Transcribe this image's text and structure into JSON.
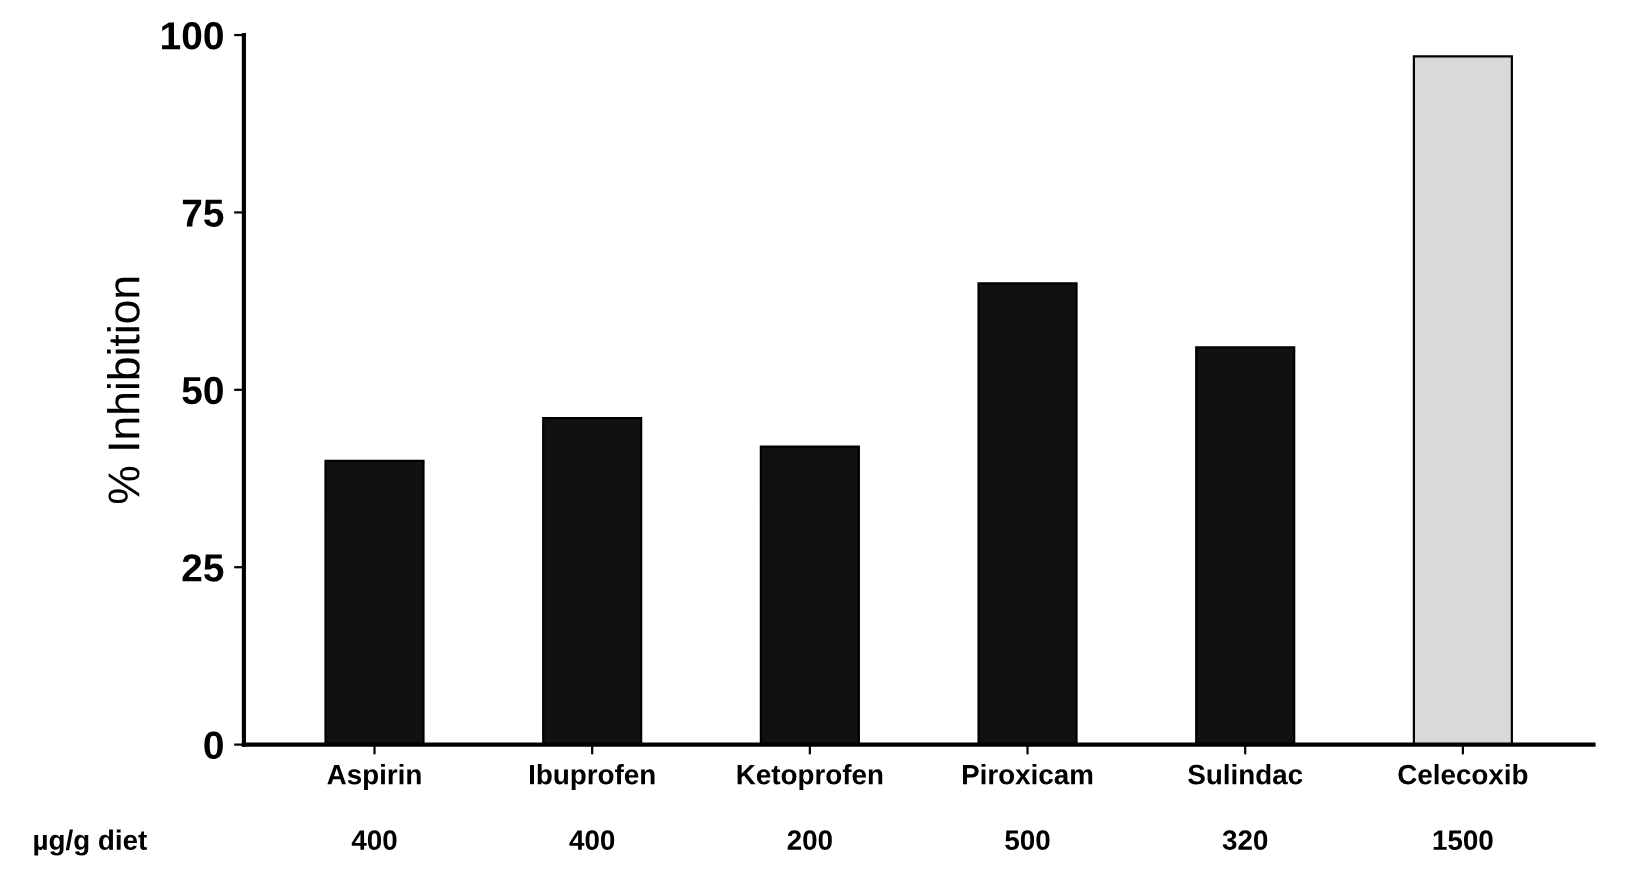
{
  "chart_data": {
    "type": "bar",
    "ylabel": "% Inhibition",
    "categories": [
      "Aspirin",
      "Ibuprofen",
      "Ketoprofen",
      "Piroxicam",
      "Sulindac",
      "Celecoxib"
    ],
    "values": [
      40,
      46,
      42,
      65,
      56,
      97
    ],
    "colors": [
      "#111111",
      "#111111",
      "#111111",
      "#111111",
      "#111111",
      "#d9d9d9"
    ],
    "ylim": [
      0,
      100
    ],
    "yticks": [
      0,
      25,
      50,
      75,
      100
    ],
    "grid": false,
    "legend": false,
    "annotations": [
      "µg/g diet",
      "400",
      "400",
      "200",
      "500",
      "320",
      "1500"
    ]
  }
}
